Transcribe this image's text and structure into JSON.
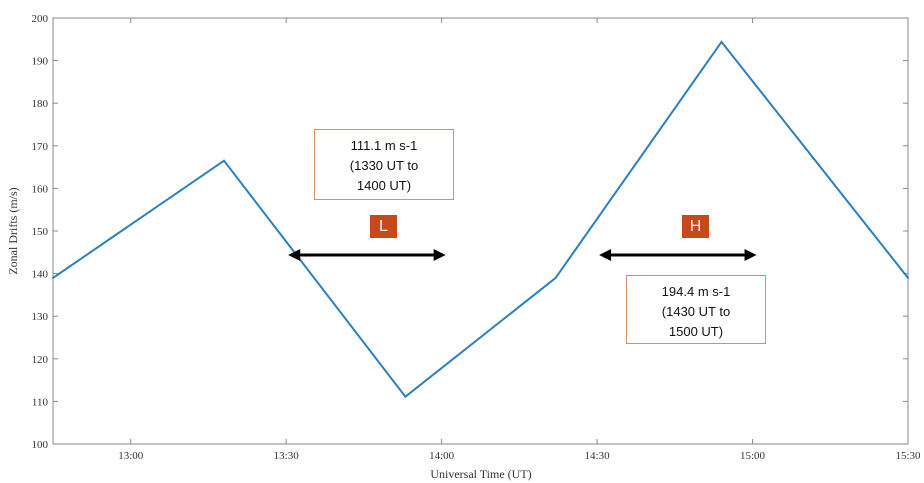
{
  "chart_data": {
    "type": "line",
    "title": "",
    "xlabel": "Universal Time (UT)",
    "ylabel": "Zonal Drifts (m/s)",
    "x_unit": "UT",
    "xlim": [
      "12:45",
      "15:30"
    ],
    "ylim": [
      100,
      200
    ],
    "x_ticks": [
      "13:00",
      "13:30",
      "14:00",
      "14:30",
      "15:00",
      "15:30"
    ],
    "y_ticks": [
      100,
      110,
      120,
      130,
      140,
      150,
      160,
      170,
      180,
      190,
      200
    ],
    "grid": false,
    "line_color": "#2a7fc1",
    "x": [
      "12:45",
      "13:18",
      "13:53",
      "14:22",
      "14:54",
      "15:30"
    ],
    "y": [
      139,
      166.5,
      111.1,
      139,
      194.4,
      139
    ],
    "annotations": [
      {
        "lines": [
          "111.1 m s-1",
          "(1330 UT to",
          "1400 UT)"
        ],
        "badge": "L",
        "range": [
          "13:30",
          "14:00"
        ]
      },
      {
        "lines": [
          "194.4 m s-1",
          "(1430 UT to",
          "1500 UT)"
        ],
        "badge": "H",
        "range": [
          "14:30",
          "15:00"
        ]
      }
    ]
  },
  "colors": {
    "box_border": "#d88e6a",
    "badge_fill": "#c5491a",
    "arrow": "#000000",
    "axis": "#888888"
  }
}
